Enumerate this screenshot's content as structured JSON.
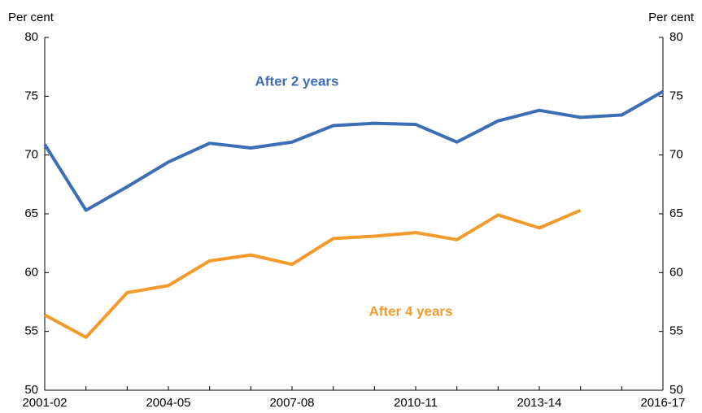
{
  "chart_data": {
    "type": "line",
    "y_label": "Per cent",
    "y2_label": "Per cent",
    "categories": [
      "2001-02",
      null,
      null,
      "2004-05",
      null,
      null,
      "2007-08",
      null,
      null,
      "2010-11",
      null,
      null,
      "2013-14",
      null,
      null,
      "2016-17"
    ],
    "series": [
      {
        "name": "After 2 years",
        "color": "#3d6db5",
        "values": [
          70.9,
          65.3,
          67.3,
          69.4,
          71.0,
          70.6,
          71.1,
          72.5,
          72.7,
          72.6,
          71.1,
          72.9,
          73.8,
          73.2,
          73.4,
          75.4
        ]
      },
      {
        "name": "After 4 years",
        "color": "#f49a2c",
        "values": [
          56.4,
          54.5,
          58.3,
          58.9,
          61.0,
          61.5,
          60.7,
          62.9,
          63.1,
          63.4,
          62.8,
          64.9,
          63.8,
          65.3,
          null,
          null
        ]
      }
    ],
    "ylim": [
      50,
      80
    ],
    "yticks": [
      50,
      55,
      60,
      65,
      70,
      75,
      80
    ],
    "y2lim": [
      50,
      80
    ],
    "y2ticks": [
      50,
      55,
      60,
      65,
      70,
      75,
      80
    ]
  }
}
